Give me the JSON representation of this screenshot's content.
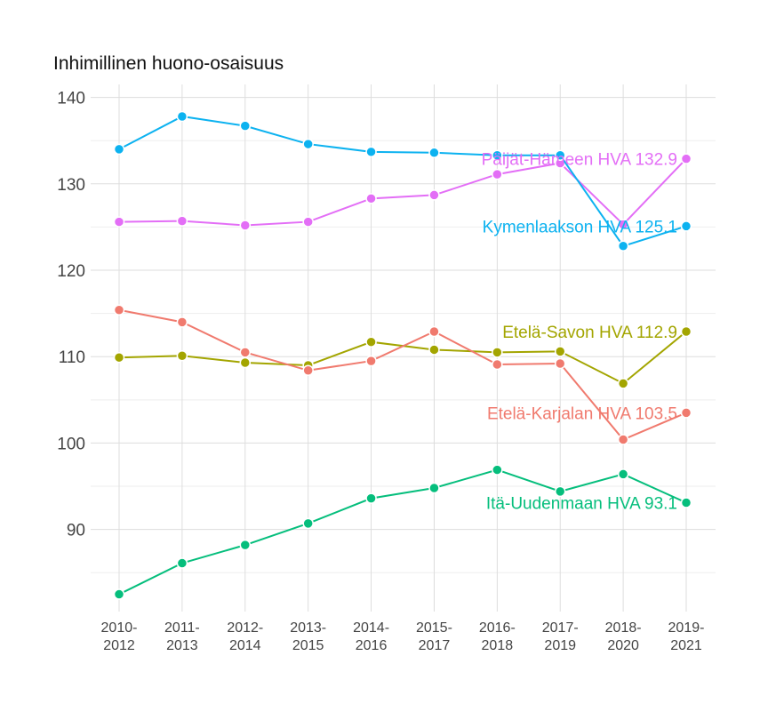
{
  "chart_data": {
    "type": "line",
    "title": "Inhimillinen huono-osaisuus",
    "xlabel": "",
    "ylabel": "",
    "categories": [
      [
        "2010-",
        "2012"
      ],
      [
        "2011-",
        "2013"
      ],
      [
        "2012-",
        "2014"
      ],
      [
        "2013-",
        "2015"
      ],
      [
        "2014-",
        "2016"
      ],
      [
        "2015-",
        "2017"
      ],
      [
        "2016-",
        "2018"
      ],
      [
        "2017-",
        "2019"
      ],
      [
        "2018-",
        "2020"
      ],
      [
        "2019-",
        "2021"
      ]
    ],
    "yticks": [
      90,
      100,
      110,
      120,
      130,
      140
    ],
    "ylim": [
      80.5,
      141.5
    ],
    "grid": true,
    "legend": "none (direct labels at right end of lines)",
    "series": [
      {
        "name": "Päijät-Hämeen HVA",
        "label": "Päijät-Hämeen HVA 132.9",
        "color": "#E36EF6",
        "values": [
          125.6,
          125.7,
          125.2,
          125.6,
          128.3,
          128.7,
          131.1,
          132.4,
          125.3,
          132.9
        ]
      },
      {
        "name": "Kymenlaakson HVA",
        "label": "Kymenlaakson HVA 125.1",
        "color": "#0CB2F0",
        "values": [
          134.0,
          137.8,
          136.7,
          134.6,
          133.7,
          133.6,
          133.3,
          133.3,
          122.8,
          125.1
        ]
      },
      {
        "name": "Etelä-Savon HVA",
        "label": "Etelä-Savon HVA 112.9",
        "color": "#A3A500",
        "values": [
          109.9,
          110.1,
          109.3,
          109.0,
          111.7,
          110.8,
          110.5,
          110.6,
          106.9,
          112.9
        ]
      },
      {
        "name": "Etelä-Karjalan HVA",
        "label": "Etelä-Karjalan HVA 103.5",
        "color": "#F07A6E",
        "values": [
          115.4,
          114.0,
          110.5,
          108.4,
          109.5,
          112.9,
          109.1,
          109.2,
          100.4,
          103.5
        ]
      },
      {
        "name": "Itä-Uudenmaan HVA",
        "label": "Itä-Uudenmaan HVA 93.1",
        "color": "#05BE7C",
        "values": [
          82.5,
          86.1,
          88.2,
          90.7,
          93.6,
          94.8,
          96.9,
          94.4,
          96.4,
          93.1
        ]
      }
    ]
  }
}
